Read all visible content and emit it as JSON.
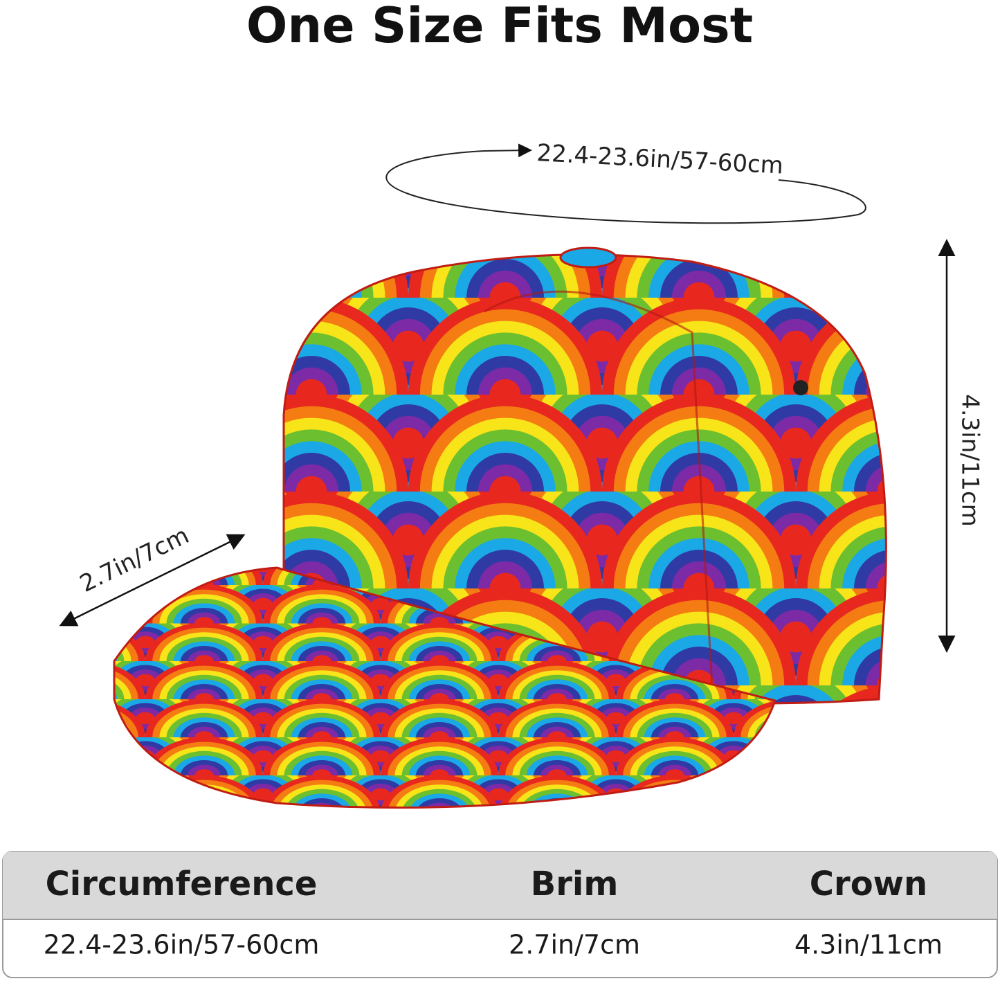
{
  "title": "One Size Fits Most",
  "annotations": {
    "circumference": "22.4-23.6in/57-60cm",
    "brim": "2.7in/7cm",
    "crown": "4.3in/11cm"
  },
  "table": {
    "headers": [
      "Circumference",
      "Brim",
      "Crown"
    ],
    "rows": [
      [
        "22.4-23.6in/57-60cm",
        "2.7in/7cm",
        "4.3in/11cm"
      ]
    ]
  }
}
